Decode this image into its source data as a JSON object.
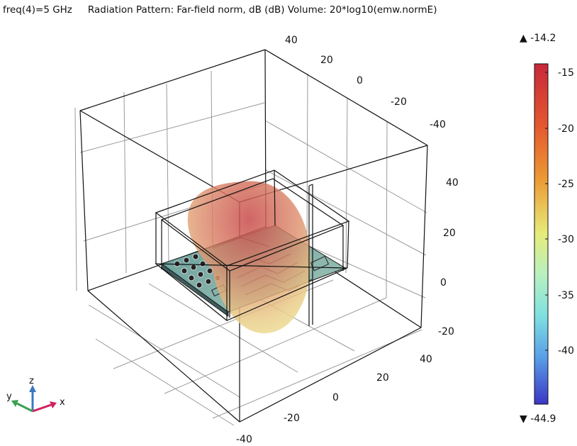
{
  "header": {
    "freq_label": "freq(4)=5 GHz",
    "plot_title": "Radiation Pattern: Far-field norm, dB (dB)  Volume: 20*log10(emw.normE)"
  },
  "axes": {
    "top_ticks": [
      "40",
      "20",
      "0",
      "-20",
      "-40"
    ],
    "right_ticks": [
      "40",
      "20",
      "0",
      "-20"
    ],
    "bottom_ticks": [
      "40",
      "20",
      "0",
      "-20",
      "-40"
    ]
  },
  "colorbar": {
    "max_label": "▲ -14.2",
    "min_label": "▼ -44.9",
    "ticks": [
      "-15",
      "-20",
      "-25",
      "-30",
      "-35",
      "-40"
    ],
    "colors": [
      "#c8283a",
      "#e8802a",
      "#e6ec7a",
      "#7fe0d8",
      "#5fa8e8",
      "#3a3ac8"
    ]
  },
  "triad": {
    "z": "z",
    "y": "y",
    "x": "x"
  }
}
